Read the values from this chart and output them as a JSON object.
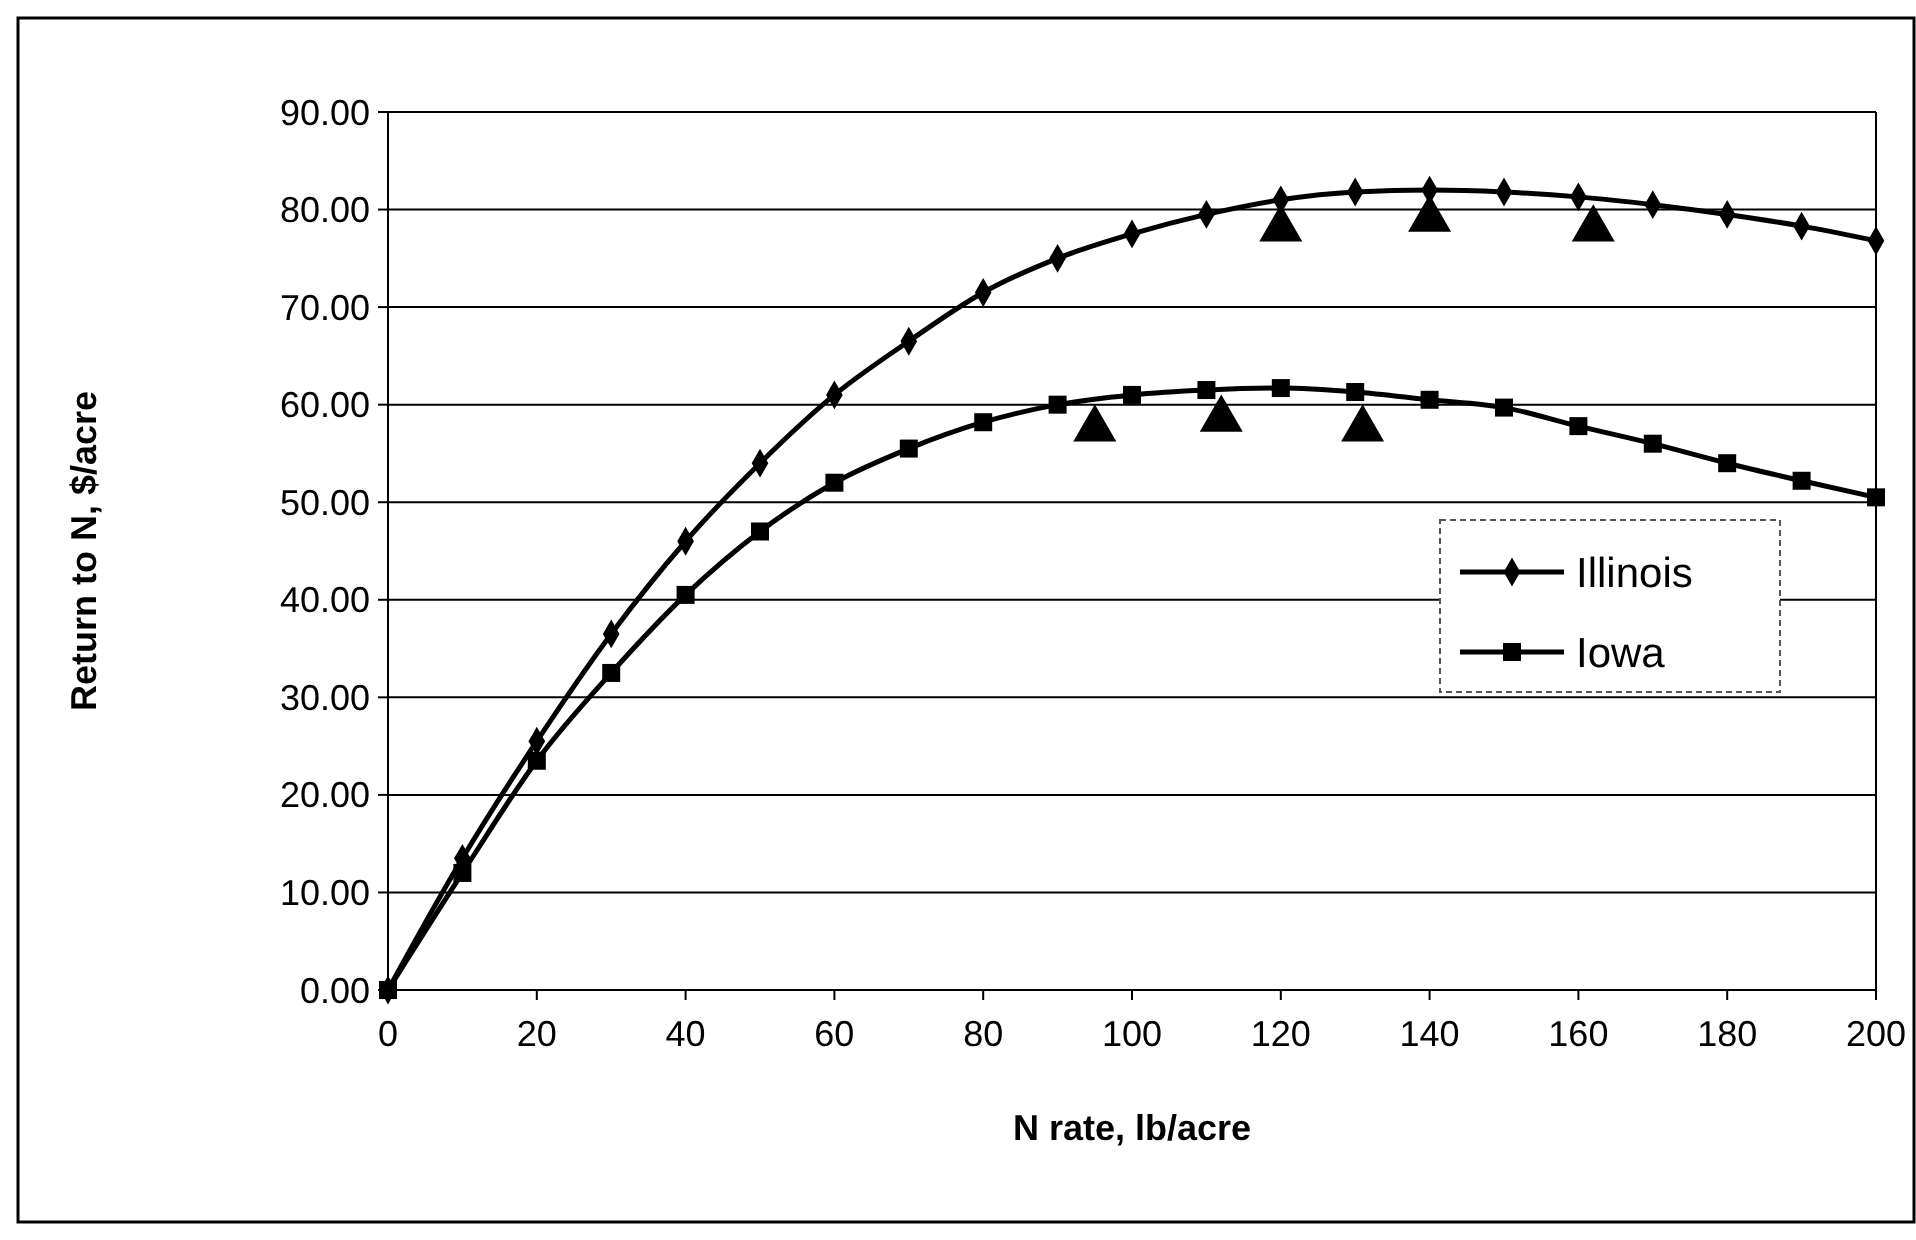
{
  "chart_data": {
    "type": "line",
    "xlabel": "N rate, lb/acre",
    "ylabel": "Return to N, $/acre",
    "x": [
      0,
      10,
      20,
      30,
      40,
      50,
      60,
      70,
      80,
      90,
      100,
      110,
      120,
      130,
      140,
      150,
      160,
      170,
      180,
      190,
      200
    ],
    "series": [
      {
        "name": "Illinois",
        "color": "#000000",
        "marker": "diamond",
        "values": [
          0,
          13.5,
          25.5,
          36.5,
          46,
          54,
          61,
          66.5,
          71.5,
          75,
          77.5,
          79.5,
          81,
          81.8,
          82,
          81.8,
          81.3,
          80.5,
          79.5,
          78.3,
          76.8
        ]
      },
      {
        "name": "Iowa",
        "color": "#000000",
        "marker": "square",
        "values": [
          0,
          12,
          23.5,
          32.5,
          40.5,
          47,
          52,
          55.5,
          58.2,
          60,
          61,
          61.5,
          61.7,
          61.3,
          60.5,
          59.7,
          57.8,
          56,
          54,
          52.2,
          50.5
        ]
      },
      {
        "type": "scatter",
        "color": "#000000",
        "marker": "triangle",
        "x": [
          120,
          140,
          162,
          95,
          112,
          131
        ],
        "values": [
          78,
          79,
          78,
          57.5,
          58.5,
          57.5
        ]
      }
    ],
    "xlim": [
      0,
      200
    ],
    "xticks": [
      0,
      20,
      40,
      60,
      80,
      100,
      120,
      140,
      160,
      180,
      200
    ],
    "ylim": [
      0,
      90
    ],
    "yticks": [
      {
        "value": 0,
        "label": "0.00"
      },
      {
        "value": 10,
        "label": "10.00"
      },
      {
        "value": 20,
        "label": "20.00"
      },
      {
        "value": 30,
        "label": "30.00"
      },
      {
        "value": 40,
        "label": "40.00"
      },
      {
        "value": 50,
        "label": "50.00"
      },
      {
        "value": 60,
        "label": "60.00"
      },
      {
        "value": 70,
        "label": "70.00"
      },
      {
        "value": 80,
        "label": "80.00"
      },
      {
        "value": 90,
        "label": "90.00"
      }
    ],
    "grid": "y",
    "legend": "right"
  }
}
